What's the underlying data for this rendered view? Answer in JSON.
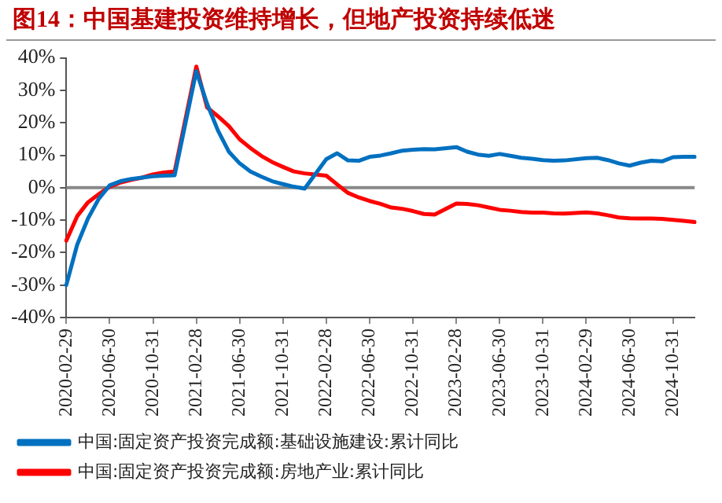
{
  "chart_data": {
    "type": "line",
    "title": "图14：中国基建投资维持增长，但地产投资持续低迷",
    "categories": [
      "2020-02-29",
      null,
      null,
      null,
      "2020-06-30",
      null,
      null,
      null,
      "2020-10-31",
      null,
      null,
      null,
      "2021-02-28",
      null,
      null,
      null,
      "2021-06-30",
      null,
      null,
      null,
      "2021-10-31",
      null,
      null,
      null,
      "2022-02-28",
      null,
      null,
      null,
      "2022-06-30",
      null,
      null,
      null,
      "2022-10-31",
      null,
      null,
      null,
      "2023-02-28",
      null,
      null,
      null,
      "2023-06-30",
      null,
      null,
      null,
      "2023-10-31",
      null,
      null,
      null,
      "2024-02-29",
      null,
      null,
      null,
      "2024-06-30",
      null,
      null,
      null,
      "2024-10-31",
      null,
      null
    ],
    "series": [
      {
        "name": "中国:固定资产投资完成额:基础设施建设:累计同比",
        "color": "#0070c0",
        "values": [
          -30,
          -17.6,
          -9.5,
          -3.4,
          0.7,
          2,
          2.7,
          3.1,
          3.5,
          3.7,
          3.8,
          null,
          35.9,
          25.8,
          17.6,
          11.1,
          7.5,
          5,
          3.4,
          2,
          1.1,
          0.3,
          -0.3,
          null,
          8.8,
          10.6,
          8.4,
          8.3,
          9.5,
          9.9,
          10.6,
          11.4,
          11.7,
          11.9,
          11.8,
          null,
          12.5,
          11.1,
          10.2,
          9.8,
          10.4,
          9.8,
          9.2,
          8.9,
          8.5,
          8.3,
          8.4,
          null,
          9.1,
          9.2,
          8.5,
          7.5,
          6.8,
          7.7,
          8.3,
          8.1,
          9.4,
          9.5,
          9.5
        ]
      },
      {
        "name": "中国:固定资产投资完成额:房地产业:累计同比",
        "color": "#ff0000",
        "values": [
          -16.3,
          -8.8,
          -4.5,
          -2,
          0.3,
          1.6,
          2.4,
          3.1,
          4.1,
          4.7,
          5,
          null,
          37.3,
          24.7,
          22,
          19,
          14.9,
          12.2,
          9.8,
          7.9,
          6.4,
          5,
          4.4,
          null,
          3.7,
          1,
          -1.6,
          -3,
          -4.1,
          -5,
          -6.1,
          -6.5,
          -7.2,
          -8.1,
          -8.3,
          null,
          -4.9,
          -5,
          -5.4,
          -6.1,
          -6.8,
          -7.1,
          -7.5,
          -7.7,
          -7.7,
          -7.9,
          -8,
          null,
          -7.6,
          -7.9,
          -8.5,
          -9.2,
          -9.4,
          -9.5,
          -9.5,
          -9.6,
          -9.9,
          -10.2,
          -10.6
        ]
      }
    ],
    "ylim": [
      -40,
      40
    ],
    "yticks": [
      {
        "value": -40,
        "label": "-40%"
      },
      {
        "value": -30,
        "label": "-30%"
      },
      {
        "value": -20,
        "label": "-20%"
      },
      {
        "value": -10,
        "label": "-10%"
      },
      {
        "value": 0,
        "label": "0%"
      },
      {
        "value": 10,
        "label": "10%"
      },
      {
        "value": 20,
        "label": "20%"
      },
      {
        "value": 30,
        "label": "30%"
      },
      {
        "value": 40,
        "label": "40%"
      }
    ],
    "ref_lines": [
      {
        "axis": "y",
        "value": 0
      }
    ],
    "grid": false,
    "legend": "bottom",
    "marker": "none",
    "line_style": "solid"
  }
}
